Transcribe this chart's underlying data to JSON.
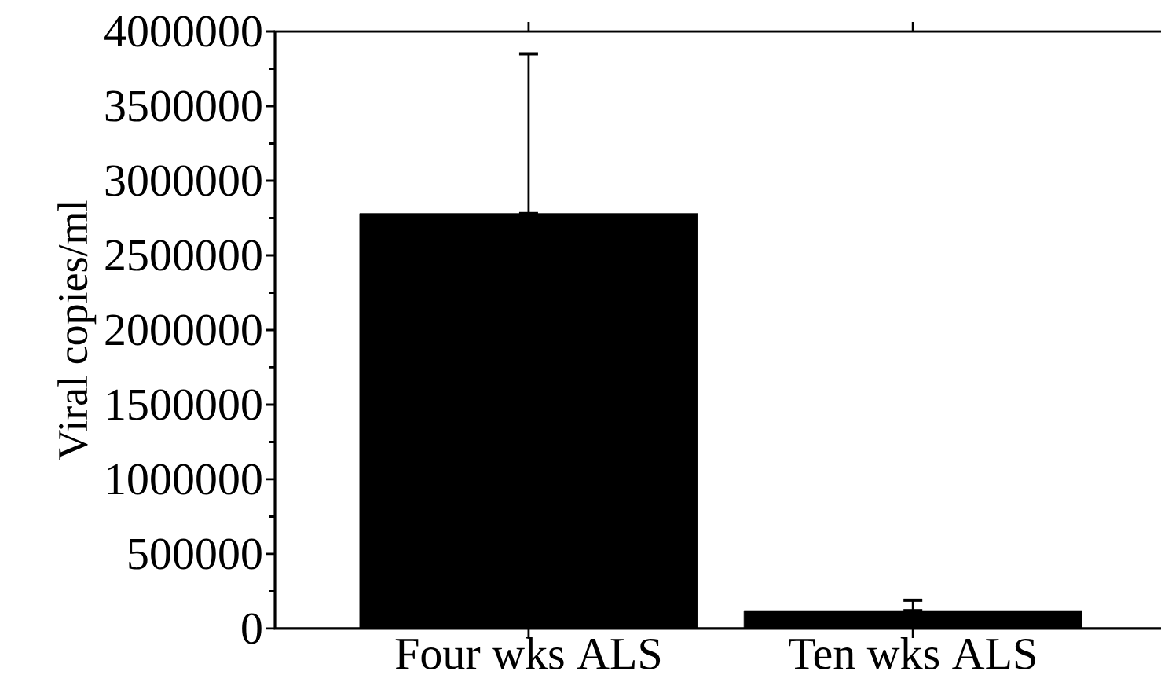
{
  "chart_data": {
    "type": "bar",
    "ylabel": "Viral copies/ml",
    "categories": [
      "Four wks ALS",
      "Ten wks ALS"
    ],
    "values": [
      2780000,
      120000
    ],
    "errors": [
      [
        2780000,
        3850000
      ],
      [
        120000,
        190000
      ]
    ],
    "color": "#000000",
    "ylim": [
      0,
      4000000
    ],
    "yticks": [
      0,
      500000,
      1000000,
      1500000,
      2000000,
      2500000,
      3000000,
      3500000,
      4000000
    ]
  }
}
